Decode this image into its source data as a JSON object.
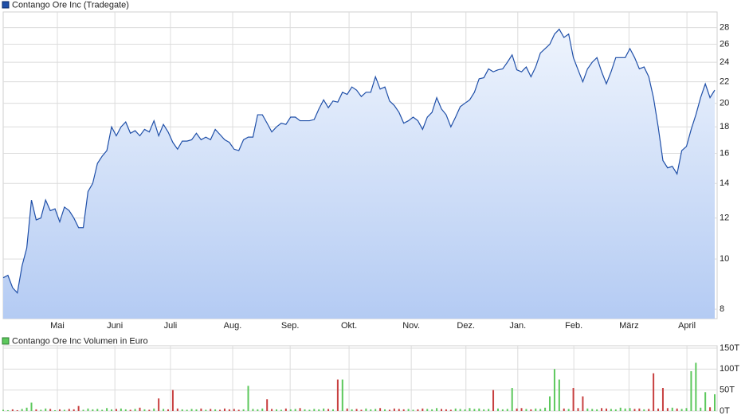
{
  "chart_data": [
    {
      "type": "area",
      "series": [
        {
          "name": "Contango Ore Inc (Tradegate)",
          "color": "#1f4fa8",
          "values": [
            9.2,
            9.3,
            8.8,
            8.6,
            9.7,
            10.5,
            13.0,
            11.9,
            12.0,
            13.0,
            12.4,
            12.5,
            11.8,
            12.6,
            12.4,
            12.0,
            11.5,
            11.5,
            13.5,
            14.0,
            15.3,
            15.8,
            16.2,
            18.0,
            17.3,
            18.0,
            18.4,
            17.5,
            17.7,
            17.3,
            17.8,
            17.6,
            18.5,
            17.3,
            18.2,
            17.6,
            16.8,
            16.3,
            16.9,
            16.9,
            17.0,
            17.5,
            17.0,
            17.2,
            17.0,
            17.8,
            17.4,
            17.0,
            16.8,
            16.3,
            16.2,
            17.0,
            17.2,
            17.2,
            19.0,
            19.0,
            18.3,
            17.6,
            18.0,
            18.3,
            18.2,
            18.8,
            18.8,
            18.5,
            18.5,
            18.5,
            18.6,
            19.5,
            20.3,
            19.6,
            20.2,
            20.1,
            21.0,
            20.8,
            21.5,
            21.2,
            20.6,
            21.0,
            21.0,
            22.5,
            21.3,
            21.5,
            20.2,
            19.8,
            19.2,
            18.3,
            18.5,
            18.8,
            18.5,
            17.8,
            18.8,
            19.2,
            20.5,
            19.5,
            19.0,
            18.0,
            18.8,
            19.7,
            20.0,
            20.3,
            21.0,
            22.3,
            22.4,
            23.3,
            23.0,
            23.2,
            23.3,
            24.0,
            24.8,
            23.2,
            23.0,
            23.5,
            22.5,
            23.5,
            25.0,
            25.5,
            26.0,
            27.2,
            27.8,
            26.8,
            27.2,
            24.5,
            23.2,
            22.0,
            23.3,
            24.0,
            24.5,
            23.0,
            21.8,
            23.0,
            24.5,
            24.5,
            24.5,
            25.5,
            24.5,
            23.3,
            23.5,
            22.5,
            20.5,
            18.0,
            15.5,
            15.0,
            15.1,
            14.6,
            16.2,
            16.5,
            17.8,
            19.0,
            20.5,
            21.8,
            20.5,
            21.2
          ]
        }
      ],
      "xlim": [
        0,
        151
      ],
      "xticks": [
        {
          "value": 11.5,
          "label": "Mai"
        },
        {
          "value": 23.7,
          "label": "Juni"
        },
        {
          "value": 35.5,
          "label": "Juli"
        },
        {
          "value": 48.7,
          "label": "Aug."
        },
        {
          "value": 60.9,
          "label": "Sep."
        },
        {
          "value": 73.4,
          "label": "Okt."
        },
        {
          "value": 86.6,
          "label": "Nov."
        },
        {
          "value": 98.2,
          "label": "Dez."
        },
        {
          "value": 109.2,
          "label": "Jan."
        },
        {
          "value": 121.1,
          "label": "Feb."
        },
        {
          "value": 132.8,
          "label": "März"
        },
        {
          "value": 145.1,
          "label": "April"
        }
      ],
      "ylim": [
        7.67,
        29.7
      ],
      "yticks": [
        8,
        10,
        12,
        14,
        16,
        18,
        20,
        22,
        24,
        26,
        28
      ],
      "log_scale": true,
      "grid": true
    },
    {
      "type": "bar",
      "series": [
        {
          "name": "Contango Ore Inc Volumen in Euro",
          "color": "#5cc85c",
          "values": [
            3,
            2,
            4,
            2,
            5,
            8,
            20,
            4,
            3,
            6,
            5,
            2,
            4,
            3,
            5,
            4,
            12,
            3,
            6,
            4,
            5,
            3,
            7,
            4,
            5,
            6,
            4,
            3,
            5,
            8,
            4,
            3,
            6,
            30,
            5,
            4,
            50,
            6,
            4,
            3,
            5,
            4,
            6,
            3,
            5,
            4,
            3,
            6,
            4,
            5,
            3,
            4,
            60,
            5,
            4,
            6,
            28,
            5,
            4,
            3,
            6,
            4,
            5,
            7,
            4,
            3,
            5,
            4,
            6,
            5,
            4,
            75,
            75,
            6,
            4,
            5,
            3,
            6,
            4,
            5,
            7,
            4,
            3,
            6,
            5,
            4,
            5,
            3,
            4,
            6,
            5,
            4,
            7,
            5,
            4,
            3,
            6,
            5,
            4,
            7,
            5,
            6,
            4,
            5,
            50,
            6,
            4,
            5,
            55,
            6,
            7,
            5,
            4,
            6,
            5,
            8,
            35,
            100,
            75,
            6,
            5,
            55,
            7,
            35,
            6,
            5,
            4,
            7,
            6,
            5,
            4,
            8,
            6,
            7,
            5,
            6,
            4,
            5,
            90,
            6,
            55,
            7,
            8,
            6,
            5,
            7,
            95,
            115,
            8,
            45,
            9,
            40
          ]
        }
      ],
      "down_color": "#c84040",
      "xlim": [
        0,
        151
      ],
      "xticks": [
        11.5,
        23.7,
        35.5,
        48.7,
        60.9,
        73.4,
        86.6,
        98.2,
        109.2,
        121.1,
        132.8,
        145.1
      ],
      "ylim": [
        0,
        150
      ],
      "yticks": [
        {
          "value": 0,
          "label": "0T"
        },
        {
          "value": 50,
          "label": "50T"
        },
        {
          "value": 100,
          "label": "100T"
        },
        {
          "value": 150,
          "label": "150T"
        }
      ],
      "grid": true
    }
  ]
}
